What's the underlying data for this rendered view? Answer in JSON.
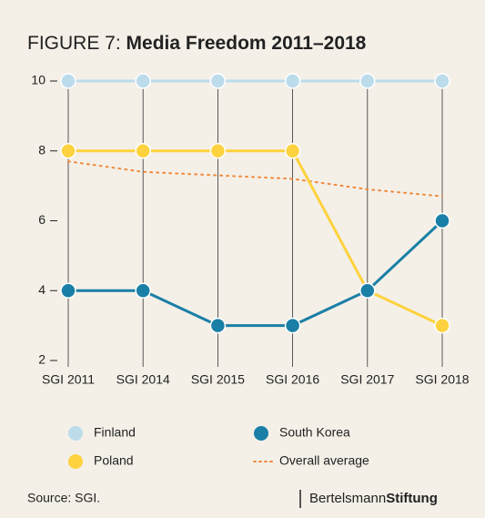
{
  "chart_data": {
    "type": "line",
    "figure_label": "FIGURE 7:",
    "title": "Media Freedom 2011–2018",
    "categories": [
      "SGI 2011",
      "SGI 2014",
      "SGI 2015",
      "SGI 2016",
      "SGI 2017",
      "SGI 2018"
    ],
    "series": [
      {
        "name": "Finland",
        "color": "#bcdcec",
        "values": [
          10,
          10,
          10,
          10,
          10,
          10
        ],
        "style": "solid-markers"
      },
      {
        "name": "Poland",
        "color": "#fdd23e",
        "values": [
          8,
          8,
          8,
          8,
          4,
          3
        ],
        "style": "solid-markers"
      },
      {
        "name": "South Korea",
        "color": "#1a7fa6",
        "values": [
          4,
          4,
          3,
          3,
          4,
          6
        ],
        "style": "solid-markers"
      },
      {
        "name": "Overall average",
        "color": "#f08a3c",
        "values": [
          7.7,
          7.4,
          7.3,
          7.2,
          6.9,
          6.7
        ],
        "style": "dotted"
      }
    ],
    "ylim": [
      2,
      10
    ],
    "yticks": [
      2,
      4,
      6,
      8,
      10
    ],
    "source": "Source: SGI.",
    "brand": [
      "Bertelsmann",
      "Stiftung"
    ]
  }
}
